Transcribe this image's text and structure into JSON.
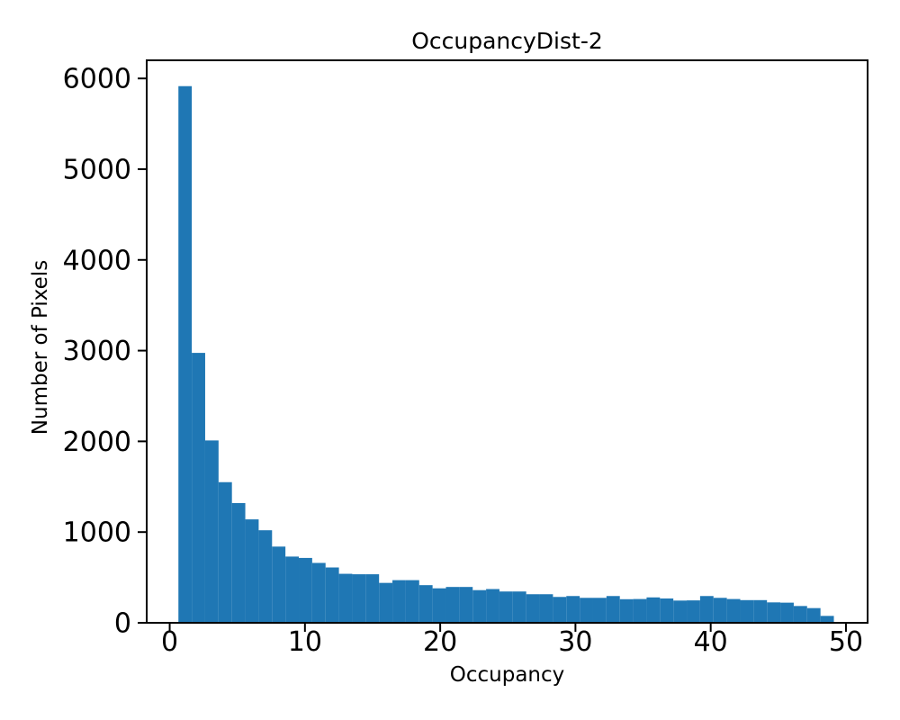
{
  "chart_data": {
    "type": "bar",
    "subtype": "histogram",
    "title": "OccupancyDist-2",
    "xlabel": "Occupancy",
    "ylabel": "Number of Pixels",
    "bar_color": "#1f77b4",
    "axis_color": "#000000",
    "background_color": "#ffffff",
    "grid": false,
    "legend": null,
    "xlim": [
      -1.7,
      51.6
    ],
    "ylim": [
      0,
      6200
    ],
    "xticks": [
      0,
      10,
      20,
      30,
      40,
      50
    ],
    "yticks": [
      0,
      1000,
      2000,
      3000,
      4000,
      5000,
      6000
    ],
    "bin_start": 0.645,
    "bin_width": 0.989,
    "values": [
      5915,
      2975,
      2010,
      1550,
      1320,
      1140,
      1020,
      840,
      730,
      715,
      660,
      610,
      540,
      535,
      535,
      440,
      470,
      470,
      415,
      380,
      395,
      395,
      360,
      372,
      345,
      345,
      315,
      315,
      285,
      295,
      275,
      275,
      295,
      260,
      262,
      280,
      268,
      245,
      247,
      295,
      275,
      262,
      250,
      250,
      225,
      222,
      185,
      162,
      76
    ]
  }
}
